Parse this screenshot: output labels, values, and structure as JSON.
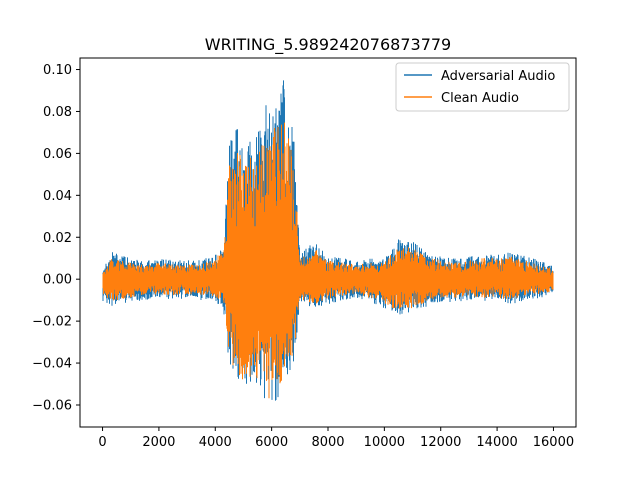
{
  "chart_data": {
    "type": "line",
    "title": "WRITING_5.989242076873779",
    "xlabel": "",
    "ylabel": "",
    "xlim": [
      -800,
      16800
    ],
    "ylim": [
      -0.0705,
      0.1055
    ],
    "x_ticks": [
      0,
      2000,
      4000,
      6000,
      8000,
      10000,
      12000,
      14000,
      16000
    ],
    "x_tick_labels": [
      "0",
      "2000",
      "4000",
      "6000",
      "8000",
      "10000",
      "12000",
      "14000",
      "16000"
    ],
    "y_ticks": [
      -0.06,
      -0.04,
      -0.02,
      0.0,
      0.02,
      0.04,
      0.06,
      0.08,
      0.1
    ],
    "y_tick_labels": [
      "−0.06",
      "−0.04",
      "−0.02",
      "0.00",
      "0.02",
      "0.04",
      "0.06",
      "0.08",
      "0.10"
    ],
    "grid": false,
    "legend_position": "top-right",
    "sample_count": 16000,
    "series": [
      {
        "name": "Adversarial Audio",
        "color": "#1f77b4",
        "envelope_x": [
          0,
          300,
          600,
          1000,
          1500,
          2000,
          2500,
          3000,
          3500,
          4000,
          4300,
          4500,
          4700,
          5000,
          5300,
          5600,
          5900,
          6200,
          6400,
          6600,
          6800,
          7000,
          7500,
          8000,
          8500,
          9000,
          9500,
          10000,
          10500,
          11000,
          11500,
          12000,
          12500,
          13000,
          13500,
          14000,
          14500,
          15000,
          15500,
          16000
        ],
        "envelope_max": [
          0.004,
          0.013,
          0.012,
          0.01,
          0.009,
          0.01,
          0.009,
          0.009,
          0.009,
          0.012,
          0.018,
          0.065,
          0.075,
          0.068,
          0.065,
          0.075,
          0.088,
          0.09,
          0.1,
          0.078,
          0.07,
          0.012,
          0.018,
          0.011,
          0.01,
          0.009,
          0.01,
          0.01,
          0.019,
          0.018,
          0.013,
          0.011,
          0.01,
          0.011,
          0.012,
          0.012,
          0.013,
          0.011,
          0.009,
          0.006
        ],
        "envelope_min": [
          -0.011,
          -0.013,
          -0.012,
          -0.011,
          -0.01,
          -0.009,
          -0.01,
          -0.009,
          -0.01,
          -0.01,
          -0.016,
          -0.042,
          -0.052,
          -0.055,
          -0.05,
          -0.052,
          -0.063,
          -0.058,
          -0.055,
          -0.046,
          -0.04,
          -0.012,
          -0.014,
          -0.012,
          -0.01,
          -0.009,
          -0.011,
          -0.014,
          -0.017,
          -0.016,
          -0.013,
          -0.011,
          -0.011,
          -0.01,
          -0.011,
          -0.011,
          -0.012,
          -0.01,
          -0.009,
          -0.007
        ]
      },
      {
        "name": "Clean Audio",
        "color": "#ff7f0e",
        "envelope_x": [
          0,
          300,
          600,
          1000,
          1500,
          2000,
          2500,
          3000,
          3500,
          4000,
          4300,
          4500,
          4700,
          5000,
          5300,
          5600,
          5900,
          6200,
          6400,
          6600,
          6800,
          7000,
          7500,
          8000,
          8500,
          9000,
          9500,
          10000,
          10500,
          11000,
          11500,
          12000,
          12500,
          13000,
          13500,
          14000,
          14500,
          15000,
          15500,
          16000
        ],
        "envelope_max": [
          0.003,
          0.01,
          0.009,
          0.008,
          0.007,
          0.008,
          0.007,
          0.007,
          0.007,
          0.01,
          0.015,
          0.055,
          0.062,
          0.06,
          0.058,
          0.065,
          0.07,
          0.075,
          0.085,
          0.072,
          0.06,
          0.01,
          0.015,
          0.009,
          0.008,
          0.007,
          0.008,
          0.008,
          0.016,
          0.015,
          0.011,
          0.009,
          0.008,
          0.009,
          0.01,
          0.01,
          0.011,
          0.009,
          0.007,
          0.005
        ],
        "envelope_min": [
          -0.009,
          -0.011,
          -0.01,
          -0.009,
          -0.008,
          -0.007,
          -0.008,
          -0.007,
          -0.008,
          -0.008,
          -0.013,
          -0.036,
          -0.045,
          -0.05,
          -0.046,
          -0.048,
          -0.057,
          -0.052,
          -0.05,
          -0.042,
          -0.035,
          -0.01,
          -0.012,
          -0.01,
          -0.008,
          -0.007,
          -0.009,
          -0.012,
          -0.015,
          -0.014,
          -0.011,
          -0.009,
          -0.009,
          -0.008,
          -0.009,
          -0.009,
          -0.01,
          -0.008,
          -0.007,
          -0.006
        ]
      }
    ]
  }
}
